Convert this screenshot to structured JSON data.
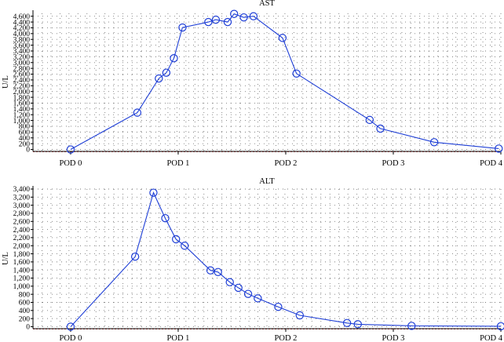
{
  "chart_data": [
    {
      "type": "line",
      "title": "AST",
      "ylabel": "U/L",
      "xlabel": "",
      "x_ticks": [
        "POD 0",
        "POD 1",
        "POD 2",
        "POD 3",
        "POD 4"
      ],
      "xlim": [
        -0.35,
        4.0
      ],
      "ylim": [
        -40,
        4700
      ],
      "y_ticks": [
        "0",
        "200",
        "400",
        "600",
        "800",
        "1,000",
        "1,200",
        "1,400",
        "1,600",
        "1,800",
        "2,000",
        "2,200",
        "2,400",
        "2,600",
        "2,800",
        "3,000",
        "3,200",
        "3,400",
        "3,600",
        "3,800",
        "4,000",
        "4,200",
        "4,400",
        "4,600"
      ],
      "y_tick_values": [
        0,
        200,
        400,
        600,
        800,
        1000,
        1200,
        1400,
        1600,
        1800,
        2000,
        2200,
        2400,
        2600,
        2800,
        3000,
        3200,
        3400,
        3600,
        3800,
        4000,
        4200,
        4400,
        4600
      ],
      "grid": true,
      "reference_line": 0,
      "series": [
        {
          "color": "#1f3fd6",
          "x": [
            0.0,
            0.62,
            0.82,
            0.89,
            0.96,
            1.04,
            1.28,
            1.35,
            1.46,
            1.52,
            1.61,
            1.7,
            1.97,
            2.1,
            2.78,
            2.88,
            3.38,
            3.98
          ],
          "y": [
            0,
            1270,
            2450,
            2650,
            3150,
            4210,
            4400,
            4480,
            4400,
            4680,
            4560,
            4600,
            3850,
            2620,
            1020,
            720,
            250,
            30
          ]
        }
      ]
    },
    {
      "type": "line",
      "title": "ALT",
      "ylabel": "U/L",
      "xlabel": "",
      "x_ticks": [
        "POD 0",
        "POD 1",
        "POD 2",
        "POD 3",
        "POD 4"
      ],
      "xlim": [
        -0.35,
        4.0
      ],
      "ylim": [
        -30,
        3400
      ],
      "y_ticks": [
        "0",
        "200",
        "400",
        "600",
        "800",
        "1,000",
        "1,200",
        "1,400",
        "1,600",
        "1,800",
        "2,000",
        "2,200",
        "2,400",
        "2,600",
        "2,800",
        "3,000",
        "3,200",
        "3,400"
      ],
      "y_tick_values": [
        0,
        200,
        400,
        600,
        800,
        1000,
        1200,
        1400,
        1600,
        1800,
        2000,
        2200,
        2400,
        2600,
        2800,
        3000,
        3200,
        3400
      ],
      "grid": true,
      "reference_line": 0,
      "series": [
        {
          "color": "#1f3fd6",
          "x": [
            0.0,
            0.6,
            0.77,
            0.88,
            0.98,
            1.06,
            1.3,
            1.37,
            1.48,
            1.56,
            1.65,
            1.74,
            1.93,
            2.13,
            2.57,
            2.67,
            3.17,
            4.0
          ],
          "y": [
            0,
            1730,
            3310,
            2680,
            2160,
            2000,
            1390,
            1350,
            1100,
            960,
            810,
            700,
            490,
            280,
            90,
            60,
            20,
            10
          ]
        }
      ]
    }
  ]
}
